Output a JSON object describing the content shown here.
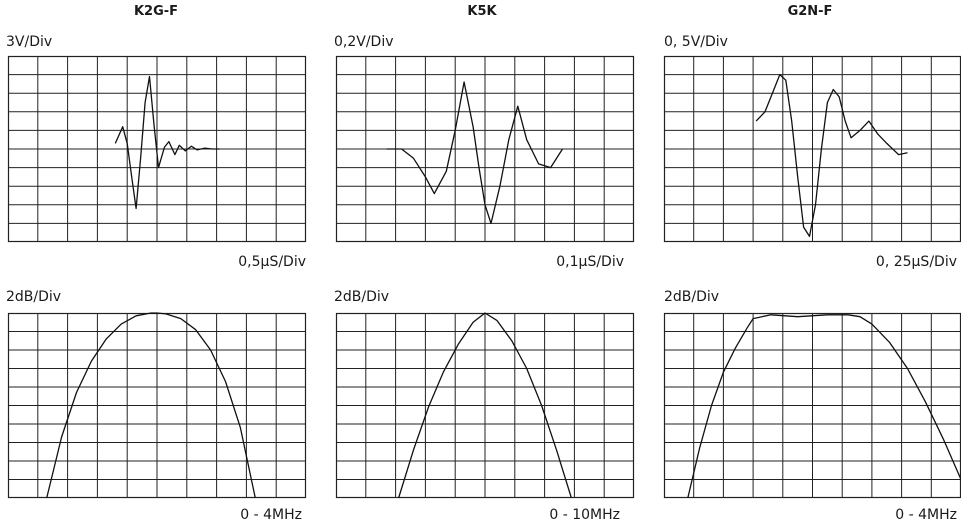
{
  "columns": [
    {
      "title": "K2G-F",
      "time_vdiv": "3V/Div",
      "time_hdiv": "0,5µS/Div",
      "freq_vdiv": "2dB/Div",
      "freq_range": "0 - 4MHz"
    },
    {
      "title": "K5K",
      "time_vdiv": "0,2V/Div",
      "time_hdiv": "0,1µS/Div",
      "freq_vdiv": "2dB/Div",
      "freq_range": "0 - 10MHz"
    },
    {
      "title": "G2N-F",
      "time_vdiv": "0, 5V/Div",
      "time_hdiv": "0, 25µS/Div",
      "freq_vdiv": "2dB/Div",
      "freq_range": "0 - 4MHz"
    }
  ],
  "chart_data": [
    {
      "type": "line",
      "panel": "K2G-F time response",
      "title": "K2G-F",
      "ylabel": "3V/Div",
      "xlabel": "0,5µS/Div",
      "grid": true,
      "divisions": {
        "x": 10,
        "y": 10
      },
      "xlim": [
        0,
        10
      ],
      "ylim": [
        -5,
        5
      ],
      "x": [
        3.6,
        3.85,
        4.0,
        4.15,
        4.3,
        4.45,
        4.6,
        4.75,
        4.9,
        5.05,
        5.25,
        5.4,
        5.6,
        5.75,
        5.95,
        6.15,
        6.35,
        6.6,
        6.85,
        7.1
      ],
      "y": [
        0.3,
        1.2,
        0.3,
        -1.5,
        -3.2,
        -0.5,
        2.5,
        3.9,
        1.3,
        -1.0,
        0.1,
        0.4,
        -0.3,
        0.2,
        -0.1,
        0.15,
        -0.05,
        0.05,
        0.0,
        0.0
      ]
    },
    {
      "type": "line",
      "panel": "K5K time response",
      "title": "K5K",
      "ylabel": "0,2V/Div",
      "xlabel": "0,1µS/Div",
      "grid": true,
      "divisions": {
        "x": 10,
        "y": 10
      },
      "xlim": [
        0,
        10
      ],
      "ylim": [
        -5,
        5
      ],
      "x": [
        1.7,
        2.2,
        2.6,
        3.0,
        3.3,
        3.7,
        4.0,
        4.3,
        4.6,
        4.8,
        5.0,
        5.2,
        5.5,
        5.8,
        6.1,
        6.4,
        6.8,
        7.2,
        7.6
      ],
      "y": [
        0.0,
        0.0,
        -0.5,
        -1.5,
        -2.4,
        -1.2,
        1.0,
        3.6,
        1.2,
        -1.0,
        -3.0,
        -4.0,
        -2.0,
        0.5,
        2.3,
        0.5,
        -0.8,
        -1.0,
        0.0
      ]
    },
    {
      "type": "line",
      "panel": "G2N-F time response",
      "title": "G2N-F",
      "ylabel": "0, 5V/Div",
      "xlabel": "0, 25µS/Div",
      "grid": true,
      "divisions": {
        "x": 10,
        "y": 10
      },
      "xlim": [
        0,
        10
      ],
      "ylim": [
        -5,
        5
      ],
      "x": [
        3.1,
        3.4,
        3.7,
        3.9,
        4.1,
        4.3,
        4.5,
        4.7,
        4.9,
        5.1,
        5.3,
        5.5,
        5.7,
        5.9,
        6.1,
        6.3,
        6.6,
        6.9,
        7.2,
        7.5,
        7.9,
        8.2
      ],
      "y": [
        1.5,
        2.0,
        3.2,
        4.0,
        3.7,
        1.5,
        -1.5,
        -4.2,
        -4.7,
        -3.0,
        0.0,
        2.5,
        3.2,
        2.8,
        1.5,
        0.6,
        1.0,
        1.5,
        0.8,
        0.3,
        -0.3,
        -0.2
      ]
    },
    {
      "type": "line",
      "panel": "K2G-F frequency response",
      "title": "K2G-F",
      "ylabel": "2dB/Div",
      "xlabel": "0 - 4MHz",
      "grid": true,
      "divisions": {
        "x": 10,
        "y": 10
      },
      "xlim": [
        0,
        10
      ],
      "ylim": [
        -10,
        0
      ],
      "x": [
        1.3,
        1.8,
        2.3,
        2.8,
        3.3,
        3.8,
        4.3,
        4.8,
        5.0,
        5.3,
        5.8,
        6.3,
        6.8,
        7.3,
        7.8,
        8.3
      ],
      "y": [
        -10.0,
        -6.7,
        -4.3,
        -2.6,
        -1.4,
        -0.6,
        -0.15,
        0.0,
        0.0,
        -0.05,
        -0.3,
        -0.9,
        -2.0,
        -3.7,
        -6.2,
        -10.0
      ]
    },
    {
      "type": "line",
      "panel": "K5K frequency response",
      "title": "K5K",
      "ylabel": "2dB/Div",
      "xlabel": "0 - 10MHz",
      "grid": true,
      "divisions": {
        "x": 10,
        "y": 10
      },
      "xlim": [
        0,
        10
      ],
      "ylim": [
        -10,
        0
      ],
      "x": [
        2.1,
        2.6,
        3.1,
        3.6,
        4.1,
        4.6,
        5.0,
        5.4,
        5.9,
        6.4,
        6.9,
        7.4,
        7.9
      ],
      "y": [
        -10.0,
        -7.4,
        -5.1,
        -3.2,
        -1.7,
        -0.5,
        0.0,
        -0.4,
        -1.5,
        -3.0,
        -5.0,
        -7.4,
        -10.0
      ]
    },
    {
      "type": "line",
      "panel": "G2N-F frequency response",
      "title": "G2N-F",
      "ylabel": "2dB/Div",
      "xlabel": "0 - 4MHz",
      "grid": true,
      "divisions": {
        "x": 10,
        "y": 10
      },
      "xlim": [
        0,
        10
      ],
      "ylim": [
        -10,
        0
      ],
      "x": [
        0.8,
        1.2,
        1.6,
        2.0,
        2.4,
        2.8,
        3.0,
        3.6,
        4.5,
        5.5,
        6.2,
        6.6,
        7.0,
        7.6,
        8.2,
        8.8,
        9.4,
        10.0
      ],
      "y": [
        -10.0,
        -7.3,
        -5.0,
        -3.2,
        -1.9,
        -0.8,
        -0.3,
        -0.1,
        -0.2,
        -0.1,
        -0.1,
        -0.2,
        -0.6,
        -1.6,
        -3.0,
        -4.8,
        -6.8,
        -9.0
      ]
    }
  ]
}
